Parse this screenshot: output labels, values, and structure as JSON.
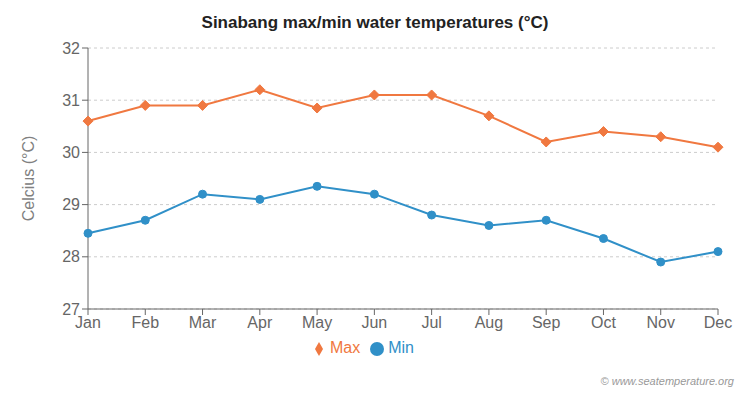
{
  "chart_data": {
    "type": "line",
    "title": "Sinabang max/min water temperatures (°C)",
    "y_label": "Celcius (°C)",
    "categories": [
      "Jan",
      "Feb",
      "Mar",
      "Apr",
      "May",
      "Jun",
      "Jul",
      "Aug",
      "Sep",
      "Oct",
      "Nov",
      "Dec"
    ],
    "series": [
      {
        "name": "Max",
        "color": "#f07840",
        "marker": "diamond",
        "values": [
          30.6,
          30.9,
          30.9,
          31.2,
          30.85,
          31.1,
          31.1,
          30.7,
          30.2,
          30.4,
          30.3,
          30.1
        ]
      },
      {
        "name": "Min",
        "color": "#3090c8",
        "marker": "circle",
        "values": [
          28.45,
          28.7,
          29.2,
          29.1,
          29.35,
          29.2,
          28.8,
          28.6,
          28.7,
          28.35,
          27.9,
          28.1
        ]
      }
    ],
    "ylim": [
      27,
      32
    ],
    "yticks": [
      27,
      28,
      29,
      30,
      31,
      32
    ],
    "grid": true,
    "annotations": [
      "© www.seatemperature.org"
    ]
  }
}
